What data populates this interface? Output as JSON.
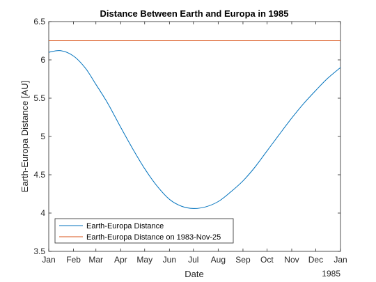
{
  "chart_data": {
    "type": "line",
    "title": "Distance Between Earth and Europa in 1985",
    "xlabel": "Date",
    "ylabel": "Earth-Europa Distance [AU]",
    "x_ticks": [
      "Jan",
      "Feb",
      "Mar",
      "Apr",
      "May",
      "Jun",
      "Jul",
      "Aug",
      "Sep",
      "Oct",
      "Nov",
      "Dec",
      "Jan"
    ],
    "x_year_label": "1985",
    "xlim": [
      "1985-01-01",
      "1986-01-01"
    ],
    "ylim": [
      3.5,
      6.5
    ],
    "y_ticks": [
      "3.5",
      "4",
      "4.5",
      "5",
      "5.5",
      "6",
      "6.5"
    ],
    "grid": false,
    "legend_position": "bottom-left",
    "series": [
      {
        "name": "Earth-Europa Distance",
        "color": "#0072bd",
        "x": [
          "1985-01-01",
          "1985-01-16",
          "1985-02-01",
          "1985-02-16",
          "1985-03-01",
          "1985-03-16",
          "1985-04-01",
          "1985-04-16",
          "1985-05-01",
          "1985-05-16",
          "1985-06-01",
          "1985-06-16",
          "1985-07-01",
          "1985-07-16",
          "1985-08-01",
          "1985-08-16",
          "1985-09-01",
          "1985-09-16",
          "1985-10-01",
          "1985-10-16",
          "1985-11-01",
          "1985-11-16",
          "1985-12-01",
          "1985-12-16",
          "1986-01-01"
        ],
        "y": [
          6.1,
          6.12,
          6.05,
          5.89,
          5.68,
          5.43,
          5.12,
          4.84,
          4.58,
          4.36,
          4.18,
          4.09,
          4.06,
          4.08,
          4.15,
          4.27,
          4.42,
          4.6,
          4.81,
          5.02,
          5.24,
          5.43,
          5.6,
          5.76,
          5.9
        ]
      },
      {
        "name": "Earth-Europa Distance on 1983-Nov-25",
        "color": "#d95319",
        "x": [
          "1985-01-01",
          "1986-01-01"
        ],
        "y": [
          6.25,
          6.25
        ]
      }
    ]
  }
}
